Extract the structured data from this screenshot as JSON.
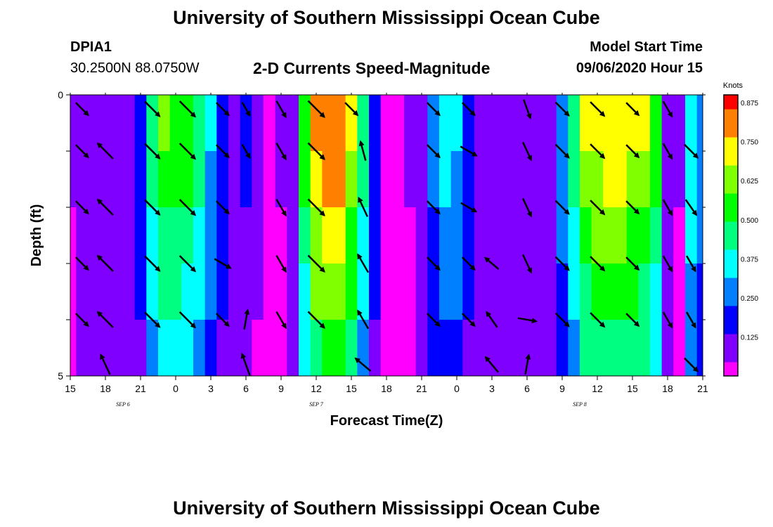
{
  "header": {
    "title": "University of Southern Mississippi Ocean Cube",
    "station_id": "DPIA1",
    "station_coords": "30.2500N 88.0750W",
    "chart_title": "2-D Currents Speed-Magnitude",
    "model_start_label": "Model Start Time",
    "model_start_value": "09/06/2020 Hour 15"
  },
  "footer": {
    "title": "University of Southern Mississippi Ocean Cube"
  },
  "colors": {
    "colormap": [
      "#ff00ff",
      "#8000ff",
      "#0000ff",
      "#0080ff",
      "#00ffff",
      "#00ff80",
      "#00ff00",
      "#80ff00",
      "#ffff00",
      "#ff8000",
      "#ff0000"
    ]
  },
  "chart_data": {
    "type": "heatmap",
    "title": "2-D Currents Speed-Magnitude",
    "xlabel": "Forecast Time(Z)",
    "ylabel": "Depth (ft)",
    "xlim": [
      0,
      54
    ],
    "ylim": [
      0,
      5
    ],
    "x_ticks": [
      0,
      3,
      6,
      9,
      12,
      15,
      18,
      21,
      24,
      27,
      30,
      33,
      36,
      39,
      42,
      45,
      48,
      51,
      54
    ],
    "x_tick_labels": [
      "15",
      "18",
      "21",
      "0",
      "3",
      "6",
      "9",
      "12",
      "15",
      "18",
      "21",
      "0",
      "3",
      "6",
      "9",
      "12",
      "15",
      "18",
      "21"
    ],
    "y_ticks": [
      0,
      1,
      2,
      3,
      4,
      5
    ],
    "y_tick_labels": [
      "0",
      "",
      "",
      "",
      "",
      "5"
    ],
    "date_labels": [
      {
        "x": 4.5,
        "text": "SEP 6"
      },
      {
        "x": 21,
        "text": "SEP 7"
      },
      {
        "x": 43.5,
        "text": "SEP 8"
      }
    ],
    "colorbar": {
      "label": "Knots",
      "min": 0,
      "max": 0.9,
      "ticks": [
        0.125,
        0.25,
        0.375,
        0.5,
        0.625,
        0.75,
        0.875
      ],
      "tick_labels": [
        "0.125",
        "0.250",
        "0.375",
        "0.500",
        "0.625",
        "0.750",
        "0.875"
      ]
    },
    "time_hours": [
      0,
      1,
      2,
      3,
      4,
      5,
      6,
      7,
      8,
      9,
      10,
      11,
      12,
      13,
      14,
      15,
      16,
      17,
      18,
      19,
      20,
      21,
      22,
      23,
      24,
      25,
      26,
      27,
      28,
      29,
      30,
      31,
      32,
      33,
      34,
      35,
      36,
      37,
      38,
      39,
      40,
      41,
      42,
      43,
      44,
      45,
      46,
      47,
      48,
      49,
      50,
      51,
      52,
      53,
      54
    ],
    "depth_layers": [
      0,
      1,
      2,
      3,
      4
    ],
    "speed_profile": [
      0.05,
      0.08,
      0.1,
      0.1,
      0.1,
      0.1,
      0.2,
      0.45,
      0.6,
      0.58,
      0.55,
      0.45,
      0.32,
      0.22,
      0.1,
      0.15,
      0.07,
      0.02,
      0.05,
      0.12,
      0.55,
      0.82,
      0.84,
      0.85,
      0.7,
      0.45,
      0.22,
      0.04,
      0.02,
      0.05,
      0.08,
      0.25,
      0.35,
      0.32,
      0.2,
      0.1,
      0.08,
      0.1,
      0.12,
      0.08,
      0.1,
      0.1,
      0.3,
      0.45,
      0.68,
      0.72,
      0.76,
      0.75,
      0.7,
      0.68,
      0.55,
      0.12,
      0.05,
      0.4,
      0.3
    ],
    "depth_factors": [
      1.0,
      0.92,
      0.82,
      0.72,
      0.6
    ],
    "vectors": [
      {
        "t": 1,
        "d": [
          {
            "dir": 135,
            "spd": 0.5
          },
          {
            "dir": 135,
            "spd": 0.5
          },
          {
            "dir": 135,
            "spd": 0.5
          },
          {
            "dir": 135,
            "spd": 0.5
          },
          {
            "dir": 135,
            "spd": 0.5
          },
          {
            "dir": 0,
            "spd": 0
          }
        ]
      },
      {
        "t": 3,
        "d": [
          {
            "dir": 0,
            "spd": 0
          },
          {
            "dir": 315,
            "spd": 0.7
          },
          {
            "dir": 315,
            "spd": 0.7
          },
          {
            "dir": 315,
            "spd": 0.7
          },
          {
            "dir": 315,
            "spd": 0.7
          },
          {
            "dir": 335,
            "spd": 0.7
          }
        ]
      },
      {
        "t": 7,
        "d": [
          {
            "dir": 135,
            "spd": 0.65
          },
          {
            "dir": 135,
            "spd": 0.65
          },
          {
            "dir": 135,
            "spd": 0.65
          },
          {
            "dir": 135,
            "spd": 0.65
          },
          {
            "dir": 135,
            "spd": 0.65
          },
          {
            "dir": 0,
            "spd": 0
          }
        ]
      },
      {
        "t": 10,
        "d": [
          {
            "dir": 135,
            "spd": 0.7
          },
          {
            "dir": 135,
            "spd": 0.7
          },
          {
            "dir": 135,
            "spd": 0.7
          },
          {
            "dir": 135,
            "spd": 0.7
          },
          {
            "dir": 135,
            "spd": 0.7
          },
          {
            "dir": 0,
            "spd": 0
          }
        ]
      },
      {
        "t": 13,
        "d": [
          {
            "dir": 135,
            "spd": 0.5
          },
          {
            "dir": 135,
            "spd": 0.5
          },
          {
            "dir": 135,
            "spd": 0.5
          },
          {
            "dir": 120,
            "spd": 0.55
          },
          {
            "dir": 135,
            "spd": 0.5
          },
          {
            "dir": 0,
            "spd": 0
          }
        ]
      },
      {
        "t": 15,
        "d": [
          {
            "dir": 150,
            "spd": 0.4
          },
          {
            "dir": 150,
            "spd": 0.4
          },
          {
            "dir": 0,
            "spd": 0
          },
          {
            "dir": 0,
            "spd": 0
          },
          {
            "dir": 10,
            "spd": 0.6
          },
          {
            "dir": 340,
            "spd": 0.75
          }
        ]
      },
      {
        "t": 18,
        "d": [
          {
            "dir": 150,
            "spd": 0.55
          },
          {
            "dir": 150,
            "spd": 0.55
          },
          {
            "dir": 150,
            "spd": 0.55
          },
          {
            "dir": 150,
            "spd": 0.55
          },
          {
            "dir": 150,
            "spd": 0.55
          },
          {
            "dir": 0,
            "spd": 0
          }
        ]
      },
      {
        "t": 21,
        "d": [
          {
            "dir": 135,
            "spd": 0.75
          },
          {
            "dir": 135,
            "spd": 0.75
          },
          {
            "dir": 135,
            "spd": 0.75
          },
          {
            "dir": 135,
            "spd": 0.75
          },
          {
            "dir": 135,
            "spd": 0.75
          },
          {
            "dir": 0,
            "spd": 0
          }
        ]
      },
      {
        "t": 25,
        "d": [
          {
            "dir": 0,
            "spd": 0
          },
          {
            "dir": 345,
            "spd": 0.6
          },
          {
            "dir": 335,
            "spd": 0.65
          },
          {
            "dir": 330,
            "spd": 0.65
          },
          {
            "dir": 330,
            "spd": 0.65
          },
          {
            "dir": 310,
            "spd": 0.6
          }
        ]
      },
      {
        "t": 24,
        "d": [
          {
            "dir": 135,
            "spd": 0.5
          },
          {
            "dir": 0,
            "spd": 0
          },
          {
            "dir": 0,
            "spd": 0
          },
          {
            "dir": 0,
            "spd": 0
          },
          {
            "dir": 0,
            "spd": 0
          },
          {
            "dir": 0,
            "spd": 0
          }
        ]
      },
      {
        "t": 31,
        "d": [
          {
            "dir": 135,
            "spd": 0.5
          },
          {
            "dir": 135,
            "spd": 0.5
          },
          {
            "dir": 135,
            "spd": 0.5
          },
          {
            "dir": 135,
            "spd": 0.5
          },
          {
            "dir": 135,
            "spd": 0.5
          },
          {
            "dir": 0,
            "spd": 0
          }
        ]
      },
      {
        "t": 34,
        "d": [
          {
            "dir": 135,
            "spd": 0.5
          },
          {
            "dir": 120,
            "spd": 0.55
          },
          {
            "dir": 120,
            "spd": 0.5
          },
          {
            "dir": 135,
            "spd": 0.5
          },
          {
            "dir": 135,
            "spd": 0.5
          },
          {
            "dir": 0,
            "spd": 0
          }
        ]
      },
      {
        "t": 36,
        "d": [
          {
            "dir": 0,
            "spd": 0
          },
          {
            "dir": 0,
            "spd": 0
          },
          {
            "dir": 0,
            "spd": 0
          },
          {
            "dir": 310,
            "spd": 0.5
          },
          {
            "dir": 325,
            "spd": 0.55
          },
          {
            "dir": 320,
            "spd": 0.6
          }
        ]
      },
      {
        "t": 39,
        "d": [
          {
            "dir": 160,
            "spd": 0.6
          },
          {
            "dir": 155,
            "spd": 0.6
          },
          {
            "dir": 155,
            "spd": 0.6
          },
          {
            "dir": 155,
            "spd": 0.6
          },
          {
            "dir": 100,
            "spd": 0.55
          },
          {
            "dir": 10,
            "spd": 0.6
          }
        ]
      },
      {
        "t": 42,
        "d": [
          {
            "dir": 135,
            "spd": 0.55
          },
          {
            "dir": 135,
            "spd": 0.55
          },
          {
            "dir": 135,
            "spd": 0.55
          },
          {
            "dir": 135,
            "spd": 0.55
          },
          {
            "dir": 135,
            "spd": 0.55
          },
          {
            "dir": 0,
            "spd": 0
          }
        ]
      },
      {
        "t": 45,
        "d": [
          {
            "dir": 135,
            "spd": 0.6
          },
          {
            "dir": 135,
            "spd": 0.6
          },
          {
            "dir": 135,
            "spd": 0.6
          },
          {
            "dir": 135,
            "spd": 0.6
          },
          {
            "dir": 135,
            "spd": 0.6
          },
          {
            "dir": 0,
            "spd": 0
          }
        ]
      },
      {
        "t": 48,
        "d": [
          {
            "dir": 135,
            "spd": 0.5
          },
          {
            "dir": 135,
            "spd": 0.5
          },
          {
            "dir": 135,
            "spd": 0.5
          },
          {
            "dir": 135,
            "spd": 0.5
          },
          {
            "dir": 135,
            "spd": 0.5
          },
          {
            "dir": 0,
            "spd": 0
          }
        ]
      },
      {
        "t": 51,
        "d": [
          {
            "dir": 150,
            "spd": 0.5
          },
          {
            "dir": 150,
            "spd": 0.5
          },
          {
            "dir": 150,
            "spd": 0.5
          },
          {
            "dir": 150,
            "spd": 0.5
          },
          {
            "dir": 150,
            "spd": 0.5
          },
          {
            "dir": 0,
            "spd": 0
          }
        ]
      },
      {
        "t": 53,
        "d": [
          {
            "dir": 0,
            "spd": 0
          },
          {
            "dir": 135,
            "spd": 0.55
          },
          {
            "dir": 145,
            "spd": 0.55
          },
          {
            "dir": 150,
            "spd": 0.5
          },
          {
            "dir": 150,
            "spd": 0.5
          },
          {
            "dir": 135,
            "spd": 0.55
          }
        ]
      }
    ]
  }
}
